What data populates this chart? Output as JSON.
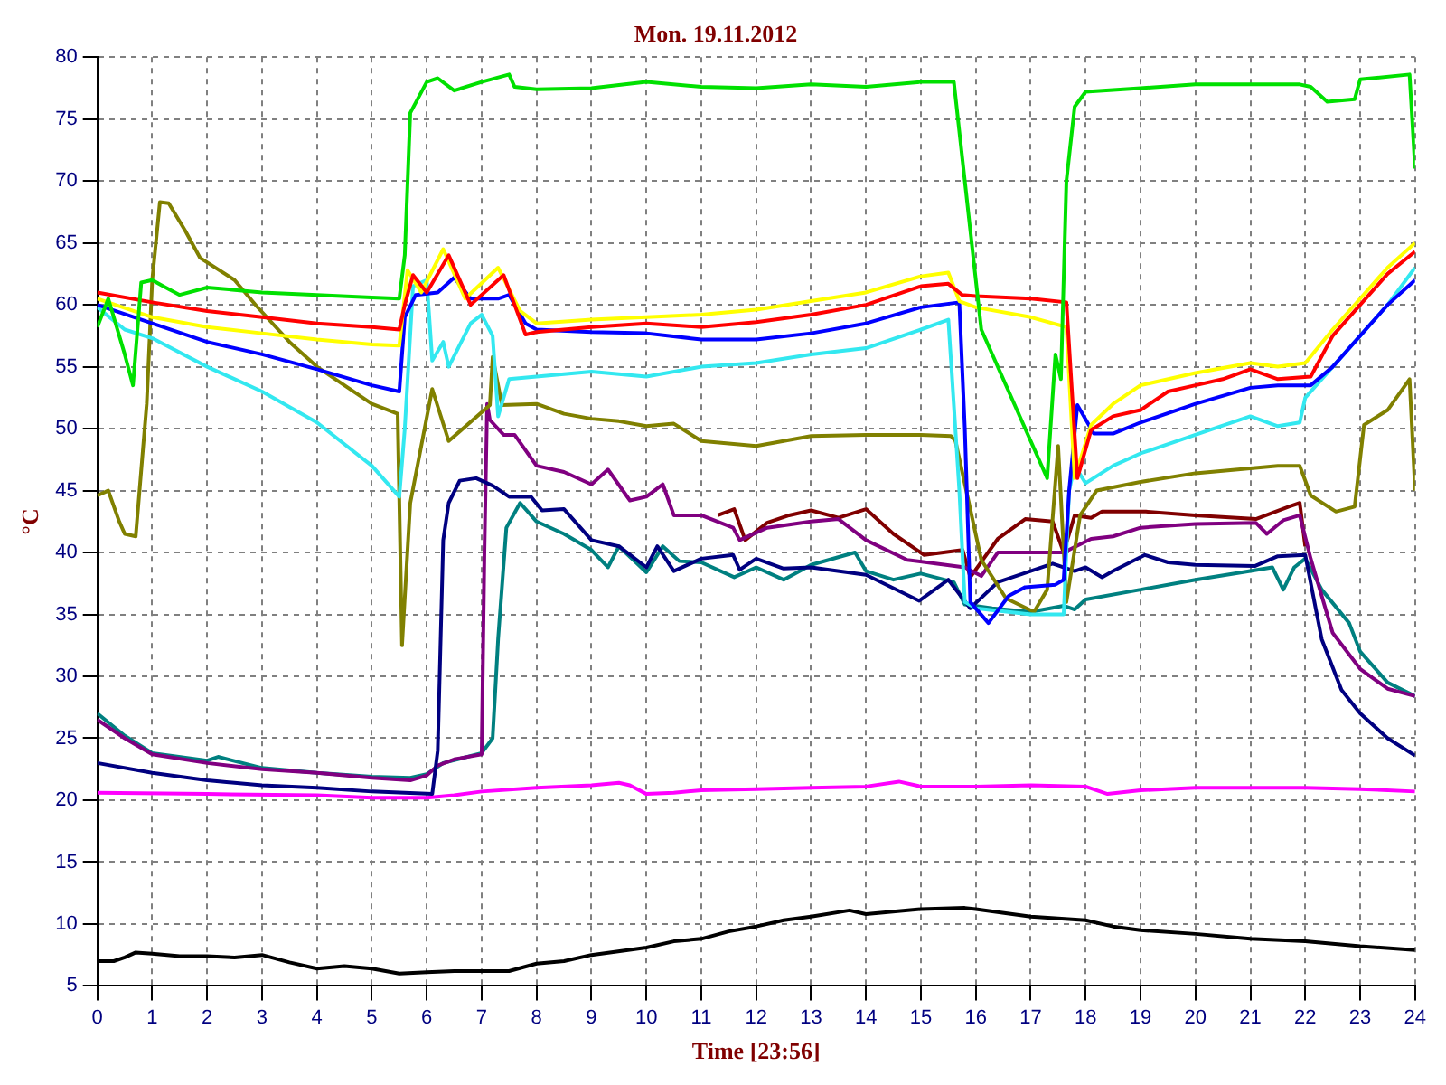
{
  "chart_data": {
    "type": "line",
    "title": "Mon. 19.11.2012",
    "xlabel": "Time [23:56]",
    "ylabel": "°C",
    "xlim": [
      0,
      24
    ],
    "ylim": [
      5,
      80
    ],
    "xticks": [
      0,
      1,
      2,
      3,
      4,
      5,
      6,
      7,
      8,
      9,
      10,
      11,
      12,
      13,
      14,
      15,
      16,
      17,
      18,
      19,
      20,
      21,
      22,
      23,
      24
    ],
    "yticks": [
      5,
      10,
      15,
      20,
      25,
      30,
      35,
      40,
      45,
      50,
      55,
      60,
      65,
      70,
      75,
      80
    ],
    "grid": true,
    "series": [
      {
        "color": "#00e000",
        "x": [
          0,
          0.2,
          0.5,
          0.65,
          0.8,
          1,
          1.2,
          1.5,
          2,
          3,
          4,
          5,
          5.5,
          5.6,
          5.7,
          6,
          6.2,
          6.5,
          7,
          7.5,
          7.6,
          8,
          9,
          10,
          11,
          12,
          13,
          14,
          15,
          15.6,
          15.8,
          16.1,
          17.3,
          17.45,
          17.55,
          17.65,
          17.8,
          18,
          19,
          20,
          21,
          21.9,
          22.1,
          22.4,
          22.9,
          23,
          23.9,
          24
        ],
        "values": [
          58.2,
          60.5,
          56,
          53.5,
          61.8,
          62,
          61.5,
          60.8,
          61.4,
          61,
          60.8,
          60.6,
          60.5,
          64,
          75.5,
          78,
          78.3,
          77.3,
          78,
          78.6,
          77.6,
          77.4,
          77.5,
          78,
          77.6,
          77.5,
          77.8,
          77.6,
          78,
          78,
          70,
          58,
          46,
          56,
          54,
          70,
          76,
          77.2,
          77.5,
          77.8,
          77.8,
          77.8,
          77.6,
          76.4,
          76.6,
          78.2,
          78.6,
          71
        ]
      },
      {
        "color": "#ff0000",
        "x": [
          0,
          1,
          2,
          3,
          4,
          5,
          5.5,
          5.6,
          5.75,
          6,
          6.4,
          6.8,
          7.4,
          7.6,
          7.8,
          8,
          9,
          10,
          11,
          12,
          13,
          14,
          15,
          15.5,
          15.75,
          16,
          17,
          17.65,
          17.85,
          18.1,
          18.5,
          19,
          19.5,
          20,
          20.5,
          21,
          21.5,
          22.1,
          22.5,
          23,
          23.5,
          24
        ],
        "values": [
          61,
          60.2,
          59.5,
          59,
          58.5,
          58.2,
          58,
          60,
          62.4,
          61,
          64,
          60,
          62.4,
          60,
          57.6,
          57.8,
          58.2,
          58.5,
          58.2,
          58.6,
          59.2,
          60,
          61.5,
          61.7,
          60.8,
          60.7,
          60.5,
          60.2,
          46,
          49.9,
          51,
          51.5,
          53,
          53.5,
          54,
          54.8,
          54,
          54.2,
          57.5,
          60,
          62.5,
          64.3
        ]
      },
      {
        "color": "#ffff00",
        "x": [
          0,
          1,
          2,
          3,
          4,
          5,
          5.5,
          5.65,
          5.9,
          6.3,
          6.7,
          7.3,
          7.7,
          8,
          9,
          10,
          11,
          12,
          13,
          14,
          15,
          15.5,
          15.7,
          16,
          17,
          17.65,
          17.8,
          18.1,
          18.5,
          19,
          20,
          21,
          21.5,
          22,
          22.5,
          23,
          23.5,
          24
        ],
        "values": [
          60.5,
          59,
          58.2,
          57.7,
          57.2,
          56.8,
          56.7,
          62.8,
          61,
          64.5,
          60.5,
          63,
          59.5,
          58.5,
          58.8,
          59,
          59.2,
          59.6,
          60.3,
          61,
          62.3,
          62.6,
          60.3,
          59.8,
          59,
          58.2,
          46,
          50.3,
          52,
          53.5,
          54.5,
          55.3,
          55,
          55.3,
          58,
          60.5,
          63,
          65
        ]
      },
      {
        "color": "#0000ff",
        "x": [
          0,
          1,
          2,
          3,
          4,
          5,
          5.5,
          5.6,
          5.8,
          6.2,
          6.5,
          6.8,
          7,
          7.3,
          7.5,
          7.8,
          8,
          9,
          10,
          11,
          12,
          13,
          14,
          15,
          15.7,
          15.8,
          15.9,
          16.23,
          16.6,
          16.9,
          17.45,
          17.6,
          17.7,
          17.85,
          18.15,
          18.5,
          19,
          20,
          21,
          21.5,
          22.1,
          22.5,
          23,
          23.5,
          24
        ],
        "values": [
          60,
          58.5,
          57,
          56,
          54.8,
          53.5,
          53,
          59,
          60.8,
          61,
          62.2,
          60.5,
          60.5,
          60.5,
          60.8,
          58.5,
          58,
          57.8,
          57.7,
          57.2,
          57.2,
          57.7,
          58.5,
          59.8,
          60.2,
          50,
          36,
          34.3,
          36.5,
          37.2,
          37.4,
          37.8,
          45,
          51.9,
          49.6,
          49.6,
          50.5,
          52,
          53.3,
          53.5,
          53.5,
          55,
          57.5,
          60,
          62
        ]
      },
      {
        "color": "#33e8f0",
        "x": [
          0,
          0.5,
          1,
          2,
          3,
          4,
          5,
          5.5,
          5.6,
          5.75,
          6,
          6.1,
          6.3,
          6.4,
          6.8,
          7,
          7.2,
          7.3,
          7.5,
          8,
          9,
          10,
          11,
          12,
          13,
          14,
          15,
          15.5,
          15.7,
          15.8,
          16,
          17,
          17.6,
          17.7,
          17.8,
          18,
          18.5,
          19,
          20,
          21,
          21.5,
          21.9,
          22,
          22.5,
          23,
          23.5,
          24
        ],
        "values": [
          59.8,
          58,
          57.3,
          55,
          53,
          50.5,
          47,
          44.5,
          50,
          61.5,
          62,
          55.5,
          57,
          55,
          58.5,
          59.2,
          57.5,
          51,
          54,
          54.2,
          54.6,
          54.2,
          55,
          55.3,
          56,
          56.5,
          58,
          58.8,
          45,
          36,
          35.5,
          35,
          35,
          45,
          47,
          45.6,
          47,
          48,
          49.5,
          51,
          50.2,
          50.5,
          52.5,
          55,
          57.5,
          60,
          63
        ]
      },
      {
        "color": "#808000",
        "x": [
          0,
          0.2,
          0.4,
          0.5,
          0.7,
          0.9,
          1,
          1.14,
          1.3,
          1.6,
          1.87,
          2.5,
          2.9,
          3.5,
          4,
          4.5,
          5,
          5.47,
          5.55,
          5.7,
          6.1,
          6.4,
          7.15,
          7.2,
          7.37,
          8,
          8.5,
          9,
          9.5,
          10,
          10.5,
          11,
          12,
          13,
          14,
          15,
          15.55,
          15.63,
          16.1,
          16.55,
          17.06,
          17.3,
          17.5,
          17.65,
          17.9,
          18.2,
          19,
          20,
          21,
          21.5,
          21.9,
          22.1,
          22.56,
          22.9,
          23.07,
          23.5,
          23.9,
          24
        ],
        "values": [
          44.6,
          45,
          42.5,
          41.5,
          41.3,
          52,
          62,
          68.3,
          68.2,
          66,
          63.8,
          62,
          59.9,
          57,
          55,
          53.5,
          52,
          51.2,
          32.5,
          44,
          53.2,
          49,
          51.9,
          55.8,
          51.9,
          52,
          51.2,
          50.8,
          50.6,
          50.2,
          50.4,
          49,
          48.6,
          49.4,
          49.5,
          49.5,
          49.4,
          49,
          39.4,
          36.3,
          35.2,
          37,
          48.6,
          36,
          43,
          45,
          45.7,
          46.4,
          46.8,
          47,
          47,
          44.6,
          43.3,
          43.7,
          50.3,
          51.5,
          54,
          45
        ]
      },
      {
        "color": "#000080",
        "x": [
          0,
          1,
          2,
          3,
          4,
          5,
          6.1,
          6.2,
          6.3,
          6.4,
          6.6,
          6.9,
          7.2,
          7.5,
          7.9,
          8.1,
          8.5,
          8.8,
          9,
          9.5,
          10,
          10.2,
          10.5,
          11,
          11.58,
          11.7,
          12,
          12.5,
          13,
          14,
          14.97,
          15.5,
          15.9,
          16.4,
          17.4,
          17.8,
          18,
          18.3,
          18.5,
          19.08,
          19.5,
          20,
          21.08,
          21.5,
          22,
          22.3,
          22.66,
          23,
          23.5,
          24
        ],
        "values": [
          23,
          22.2,
          21.6,
          21.2,
          21,
          20.7,
          20.5,
          24,
          41,
          44,
          45.8,
          46,
          45.4,
          44.5,
          44.5,
          43.4,
          43.5,
          42,
          41,
          40.5,
          38.8,
          40.5,
          38.5,
          39.5,
          39.8,
          38.6,
          39.5,
          38.7,
          38.8,
          38.2,
          36.1,
          37.8,
          35.5,
          37.6,
          39.1,
          38.5,
          38.8,
          38,
          38.5,
          39.8,
          39.2,
          39,
          38.9,
          39.7,
          39.8,
          33,
          28.9,
          27,
          25,
          23.6
        ]
      },
      {
        "color": "#800080",
        "x": [
          0,
          0.5,
          1,
          2,
          3,
          4,
          5,
          5.7,
          6,
          6.2,
          6.5,
          7,
          7.05,
          7.1,
          7.15,
          7.4,
          7.6,
          8,
          8.5,
          9,
          9.3,
          9.7,
          10,
          10.3,
          10.5,
          11,
          11.58,
          11.7,
          12.2,
          13,
          13.5,
          14,
          14.75,
          15.8,
          16.1,
          16.4,
          17,
          17.6,
          18.1,
          18.5,
          19,
          20,
          21.1,
          21.3,
          21.6,
          21.9,
          22.1,
          22.5,
          23,
          23.5,
          24
        ],
        "values": [
          26.5,
          25,
          23.7,
          23,
          22.5,
          22.2,
          21.8,
          21.6,
          22,
          22.8,
          23.3,
          23.7,
          40,
          52,
          50.7,
          49.5,
          49.5,
          47,
          46.5,
          45.5,
          46.7,
          44.2,
          44.5,
          45.5,
          43,
          43,
          42,
          41,
          42,
          42.5,
          42.7,
          41,
          39.4,
          38.8,
          38.1,
          40,
          40,
          40,
          41.1,
          41.3,
          42,
          42.3,
          42.4,
          41.5,
          42.6,
          43,
          39.5,
          33.5,
          30.6,
          29,
          28.4
        ]
      },
      {
        "color": "#008080",
        "x": [
          0,
          0.5,
          1,
          2,
          2.2,
          3,
          4,
          5,
          5.7,
          6,
          6.3,
          7,
          7.2,
          7.3,
          7.45,
          7.7,
          8,
          8.5,
          9,
          9.3,
          9.5,
          10,
          10.3,
          10.6,
          11,
          11.6,
          12,
          12.5,
          13,
          13.8,
          14,
          14.5,
          15,
          15.6,
          15.8,
          16.3,
          17,
          17.6,
          17.8,
          18,
          19,
          20,
          21,
          21.4,
          21.6,
          21.8,
          22,
          22.3,
          22.8,
          23,
          23.5,
          24
        ],
        "values": [
          27,
          25.2,
          23.8,
          23.2,
          23.5,
          22.6,
          22.2,
          21.9,
          21.8,
          22.1,
          23,
          23.8,
          25,
          33,
          42,
          44,
          42.5,
          41.5,
          40.2,
          38.8,
          40.5,
          38.4,
          40.5,
          39.3,
          39.2,
          38,
          38.8,
          37.8,
          39,
          40,
          38.5,
          37.8,
          38.3,
          37.6,
          35.8,
          35.5,
          35.2,
          35.7,
          35.4,
          36.2,
          37,
          37.8,
          38.5,
          38.8,
          37,
          38.8,
          39.5,
          37,
          34.3,
          32,
          29.5,
          28.4
        ]
      },
      {
        "color": "#800000",
        "x": [
          11.3,
          11.6,
          11.8,
          12.2,
          12.6,
          13,
          13.5,
          14,
          14.5,
          15.06,
          15.76,
          15.9,
          16.4,
          16.9,
          17.4,
          17.6,
          17.8,
          18.1,
          18.3,
          19.1,
          20,
          21.1,
          21.7,
          21.9,
          22
        ],
        "values": [
          43,
          43.5,
          41,
          42.4,
          43,
          43.4,
          42.8,
          43.5,
          41.5,
          39.8,
          40.2,
          38,
          41.1,
          42.7,
          42.5,
          40,
          43,
          42.8,
          43.3,
          43.3,
          43,
          42.7,
          43.7,
          44,
          40.5
        ]
      },
      {
        "color": "#ff00ff",
        "x": [
          0,
          2,
          4,
          5,
          6,
          6.5,
          7,
          8,
          9,
          9.5,
          9.7,
          10,
          10.5,
          11,
          12,
          13,
          14,
          14.6,
          15,
          16,
          17,
          18,
          18.4,
          19,
          20,
          21,
          22,
          23,
          24
        ],
        "values": [
          20.6,
          20.5,
          20.4,
          20.2,
          20.2,
          20.4,
          20.7,
          21,
          21.2,
          21.4,
          21.2,
          20.5,
          20.6,
          20.8,
          20.9,
          21,
          21.1,
          21.5,
          21.1,
          21.1,
          21.2,
          21.1,
          20.5,
          20.8,
          21,
          21,
          21,
          20.9,
          20.7
        ]
      },
      {
        "color": "#000000",
        "x": [
          0,
          0.3,
          0.5,
          0.7,
          1,
          1.5,
          2,
          2.5,
          3,
          3.5,
          4,
          4.5,
          5,
          5.5,
          6,
          6.5,
          7,
          7.5,
          8,
          8.5,
          9,
          10,
          10.5,
          11,
          11.5,
          12,
          12.5,
          13,
          13.7,
          14,
          15,
          15.8,
          16,
          17,
          18,
          18.5,
          19,
          20,
          21,
          22,
          23,
          24
        ],
        "values": [
          7,
          7,
          7.3,
          7.7,
          7.6,
          7.4,
          7.4,
          7.3,
          7.5,
          6.9,
          6.4,
          6.6,
          6.4,
          6,
          6.1,
          6.2,
          6.2,
          6.2,
          6.8,
          7,
          7.5,
          8.1,
          8.6,
          8.8,
          9.4,
          9.8,
          10.3,
          10.6,
          11.1,
          10.8,
          11.2,
          11.3,
          11.2,
          10.6,
          10.3,
          9.8,
          9.5,
          9.2,
          8.8,
          8.6,
          8.2,
          7.9
        ]
      }
    ]
  }
}
